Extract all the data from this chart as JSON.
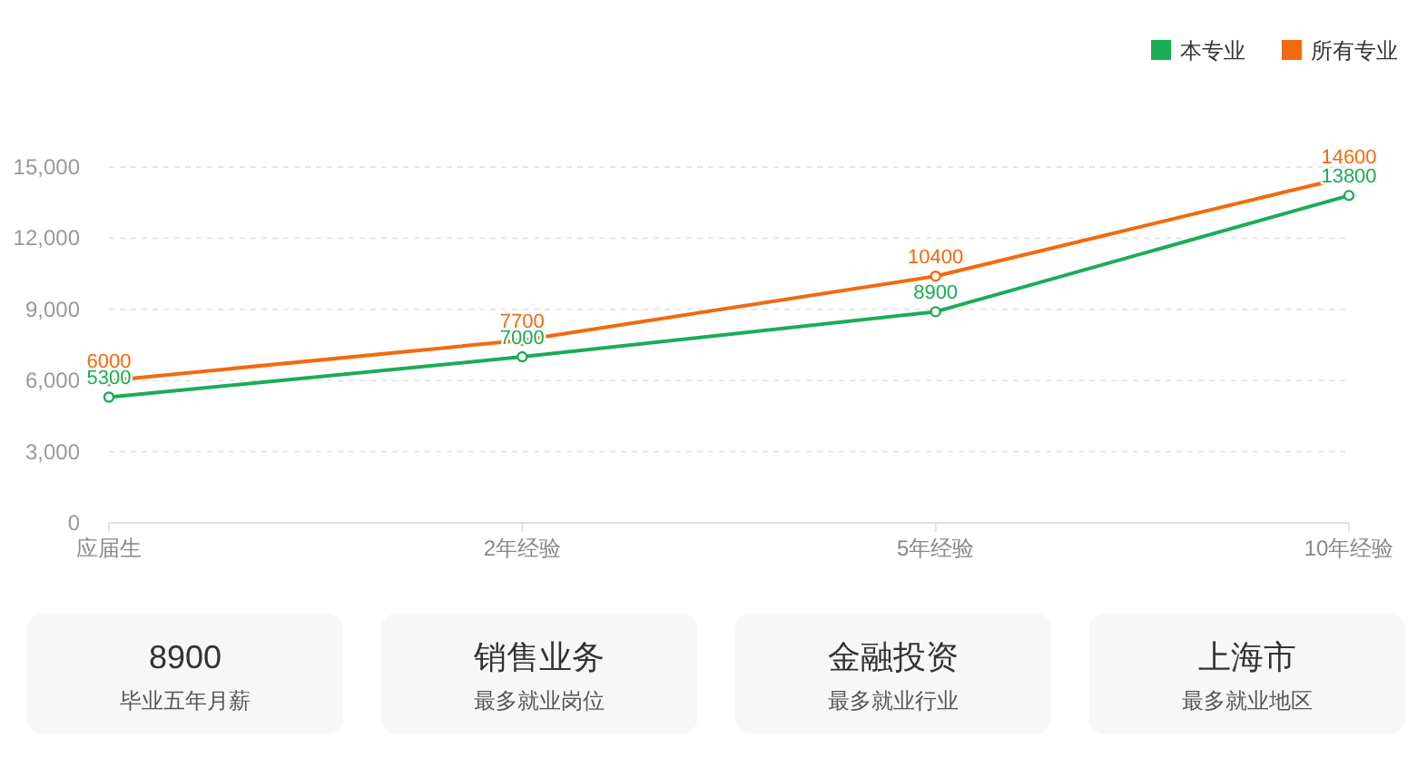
{
  "chart_data": [
    {
      "type": "line",
      "categories": [
        "应届生",
        "2年经验",
        "5年经验",
        "10年经验"
      ],
      "series": [
        {
          "name": "本专业",
          "color": "#1aad55",
          "values": [
            5300,
            7000,
            8900,
            13800
          ]
        },
        {
          "name": "所有专业",
          "color": "#f26a0f",
          "values": [
            6000,
            7700,
            10400,
            14600
          ]
        }
      ],
      "ylim": [
        0,
        15000
      ],
      "yticks": [
        0,
        {
          "value": 3000,
          "label": "3,000"
        },
        {
          "value": 6000,
          "label": "6,000"
        },
        {
          "value": 9000,
          "label": "9,000"
        },
        {
          "value": 12000,
          "label": "12,000"
        },
        {
          "value": 15000,
          "label": "15,000"
        }
      ],
      "grid": "y",
      "legend": "top right",
      "marker": "circle",
      "line_style": "solid",
      "data_labels": true
    },
    {
      "type": "other",
      "title": "8900",
      "subtitle": "毕业五年月薪"
    },
    {
      "type": "other",
      "title": "销售业务",
      "subtitle": "最多就业岗位"
    },
    {
      "type": "other",
      "title": "金融投资",
      "subtitle": "最多就业行业"
    },
    {
      "type": "other",
      "title": "上海市",
      "subtitle": "最多就业地区"
    }
  ]
}
